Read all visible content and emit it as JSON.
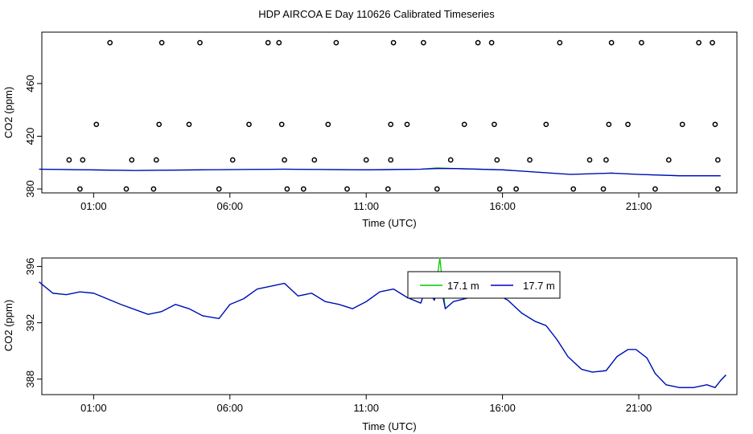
{
  "title": "HDP AIRCOA E  Day 110626  Calibrated Timeseries",
  "colors": {
    "green": "#00cc00",
    "blue": "#0000cc",
    "axis": "#000000"
  },
  "chart_data": [
    {
      "type": "scatter",
      "xlabel": "Time (UTC)",
      "ylabel": "CO2 (ppm)",
      "x_tick_labels": [
        "01:00",
        "06:00",
        "11:00",
        "16:00",
        "21:00"
      ],
      "x_tick_hours": [
        1,
        6,
        11,
        16,
        21
      ],
      "xlim_hours": [
        -0.9,
        24.6
      ],
      "y_ticks": [
        380,
        420,
        460
      ],
      "ylim": [
        377,
        499
      ],
      "grid": false,
      "points": [
        [
          0.5,
          380
        ],
        [
          0.1,
          402
        ],
        [
          0.6,
          402
        ],
        [
          1.1,
          429
        ],
        [
          1.6,
          491
        ],
        [
          2.2,
          380
        ],
        [
          2.4,
          402
        ],
        [
          3.2,
          380
        ],
        [
          3.3,
          402
        ],
        [
          3.4,
          429
        ],
        [
          3.5,
          491
        ],
        [
          4.5,
          429
        ],
        [
          4.9,
          491
        ],
        [
          5.6,
          380
        ],
        [
          6.1,
          402
        ],
        [
          6.7,
          429
        ],
        [
          7.4,
          491
        ],
        [
          7.8,
          491
        ],
        [
          7.9,
          429
        ],
        [
          8.0,
          402
        ],
        [
          8.1,
          380
        ],
        [
          8.7,
          380
        ],
        [
          9.1,
          402
        ],
        [
          9.6,
          429
        ],
        [
          9.9,
          491
        ],
        [
          10.3,
          380
        ],
        [
          11.0,
          402
        ],
        [
          11.8,
          380
        ],
        [
          11.9,
          402
        ],
        [
          11.9,
          429
        ],
        [
          12.0,
          491
        ],
        [
          12.5,
          429
        ],
        [
          13.1,
          491
        ],
        [
          13.6,
          380
        ],
        [
          14.1,
          402
        ],
        [
          14.6,
          429
        ],
        [
          15.1,
          491
        ],
        [
          15.6,
          491
        ],
        [
          15.7,
          429
        ],
        [
          15.8,
          402
        ],
        [
          15.9,
          380
        ],
        [
          16.5,
          380
        ],
        [
          17.0,
          402
        ],
        [
          17.6,
          429
        ],
        [
          18.1,
          491
        ],
        [
          18.6,
          380
        ],
        [
          19.2,
          402
        ],
        [
          19.7,
          380
        ],
        [
          19.8,
          402
        ],
        [
          19.9,
          429
        ],
        [
          20.0,
          491
        ],
        [
          20.6,
          429
        ],
        [
          21.1,
          491
        ],
        [
          21.6,
          380
        ],
        [
          22.1,
          402
        ],
        [
          22.6,
          429
        ],
        [
          23.2,
          491
        ],
        [
          23.7,
          491
        ],
        [
          23.8,
          429
        ],
        [
          23.9,
          402
        ],
        [
          23.9,
          380
        ]
      ],
      "series": [
        {
          "color_key": "green",
          "values": [
            [
              -1.0,
              395
            ],
            [
              2.5,
              394
            ],
            [
              5,
              394.5
            ],
            [
              8,
              395
            ],
            [
              11,
              394.5
            ],
            [
              13,
              395
            ],
            [
              13.6,
              396
            ],
            [
              14.2,
              395.5
            ],
            [
              16,
              394.5
            ],
            [
              18.5,
              391
            ],
            [
              20,
              392
            ],
            [
              21,
              391
            ],
            [
              22.5,
              390
            ],
            [
              24,
              390
            ]
          ]
        },
        {
          "color_key": "blue",
          "values": [
            [
              -1.0,
              395
            ],
            [
              2.5,
              394
            ],
            [
              5,
              394.5
            ],
            [
              8,
              395
            ],
            [
              11,
              394.5
            ],
            [
              13,
              395
            ],
            [
              13.6,
              395.5
            ],
            [
              14.2,
              395.5
            ],
            [
              16,
              394.5
            ],
            [
              18.5,
              391
            ],
            [
              20,
              392
            ],
            [
              21,
              391
            ],
            [
              22.5,
              390
            ],
            [
              24,
              390
            ]
          ]
        }
      ]
    },
    {
      "type": "line",
      "xlabel": "Time (UTC)",
      "ylabel": "CO2 (ppm)",
      "x_tick_labels": [
        "01:00",
        "06:00",
        "11:00",
        "16:00",
        "21:00"
      ],
      "x_tick_hours": [
        1,
        6,
        11,
        16,
        21
      ],
      "xlim_hours": [
        -0.9,
        24.6
      ],
      "y_ticks": [
        388,
        392,
        396
      ],
      "ylim": [
        386.9,
        396.6
      ],
      "grid": false,
      "legend_position": "top-center",
      "series": [
        {
          "name": "17.1 m",
          "color_key": "green",
          "values": [
            [
              -1.0,
              394.9
            ],
            [
              -0.5,
              394.1
            ],
            [
              0,
              394
            ],
            [
              0.5,
              394.2
            ],
            [
              1,
              394.1
            ],
            [
              2,
              393.3
            ],
            [
              3,
              392.6
            ],
            [
              3.5,
              392.8
            ],
            [
              4,
              393.3
            ],
            [
              4.5,
              393
            ],
            [
              5,
              392.5
            ],
            [
              5.6,
              392.3
            ],
            [
              6,
              393.3
            ],
            [
              6.5,
              393.7
            ],
            [
              7,
              394.4
            ],
            [
              7.5,
              394.6
            ],
            [
              8,
              394.8
            ],
            [
              8.5,
              393.9
            ],
            [
              9,
              394.1
            ],
            [
              9.5,
              393.5
            ],
            [
              10,
              393.3
            ],
            [
              10.5,
              393
            ],
            [
              11,
              393.5
            ],
            [
              11.5,
              394.2
            ],
            [
              12,
              394.4
            ],
            [
              12.5,
              393.8
            ],
            [
              13,
              393.4
            ],
            [
              13.2,
              394.5
            ],
            [
              13.5,
              393.6
            ],
            [
              13.7,
              396.6
            ],
            [
              13.9,
              393
            ],
            [
              14.2,
              393.5
            ],
            [
              14.8,
              393.8
            ],
            [
              15.3,
              393.9
            ],
            [
              15.7,
              394.1
            ],
            [
              16.2,
              393.6
            ],
            [
              16.7,
              392.7
            ],
            [
              17.2,
              392.1
            ],
            [
              17.6,
              391.8
            ],
            [
              18,
              390.8
            ],
            [
              18.4,
              389.6
            ],
            [
              18.9,
              388.7
            ],
            [
              19.3,
              388.5
            ],
            [
              19.8,
              388.6
            ],
            [
              20.2,
              389.6
            ],
            [
              20.6,
              390.1
            ],
            [
              20.9,
              390.1
            ],
            [
              21.3,
              389.5
            ],
            [
              21.6,
              388.4
            ],
            [
              22.0,
              387.6
            ],
            [
              22.5,
              387.4
            ],
            [
              23,
              387.4
            ],
            [
              23.5,
              387.6
            ],
            [
              23.8,
              387.4
            ],
            [
              24.0,
              387.9
            ],
            [
              24.2,
              388.3
            ]
          ]
        },
        {
          "name": "17.7 m",
          "color_key": "blue",
          "values": [
            [
              -1.0,
              394.9
            ],
            [
              -0.5,
              394.1
            ],
            [
              0,
              394
            ],
            [
              0.5,
              394.2
            ],
            [
              1,
              394.1
            ],
            [
              2,
              393.3
            ],
            [
              3,
              392.6
            ],
            [
              3.5,
              392.8
            ],
            [
              4,
              393.3
            ],
            [
              4.5,
              393
            ],
            [
              5,
              392.5
            ],
            [
              5.6,
              392.3
            ],
            [
              6,
              393.3
            ],
            [
              6.5,
              393.7
            ],
            [
              7,
              394.4
            ],
            [
              7.5,
              394.6
            ],
            [
              8,
              394.8
            ],
            [
              8.5,
              393.9
            ],
            [
              9,
              394.1
            ],
            [
              9.5,
              393.5
            ],
            [
              10,
              393.3
            ],
            [
              10.5,
              393
            ],
            [
              11,
              393.5
            ],
            [
              11.5,
              394.2
            ],
            [
              12,
              394.4
            ],
            [
              12.5,
              393.8
            ],
            [
              13,
              393.4
            ],
            [
              13.2,
              394.5
            ],
            [
              13.5,
              393.6
            ],
            [
              13.7,
              394.9
            ],
            [
              13.9,
              393
            ],
            [
              14.2,
              393.5
            ],
            [
              14.8,
              393.8
            ],
            [
              15.3,
              393.9
            ],
            [
              15.7,
              394.1
            ],
            [
              16.2,
              393.6
            ],
            [
              16.7,
              392.7
            ],
            [
              17.2,
              392.1
            ],
            [
              17.6,
              391.8
            ],
            [
              18,
              390.8
            ],
            [
              18.4,
              389.6
            ],
            [
              18.9,
              388.7
            ],
            [
              19.3,
              388.5
            ],
            [
              19.8,
              388.6
            ],
            [
              20.2,
              389.6
            ],
            [
              20.6,
              390.1
            ],
            [
              20.9,
              390.1
            ],
            [
              21.3,
              389.5
            ],
            [
              21.6,
              388.4
            ],
            [
              22.0,
              387.6
            ],
            [
              22.5,
              387.4
            ],
            [
              23,
              387.4
            ],
            [
              23.5,
              387.6
            ],
            [
              23.8,
              387.4
            ],
            [
              24.0,
              387.9
            ],
            [
              24.2,
              388.3
            ]
          ]
        }
      ]
    }
  ]
}
